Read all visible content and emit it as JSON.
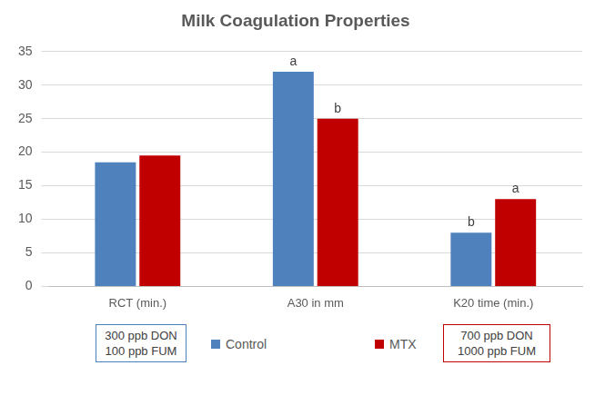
{
  "chart_data": {
    "type": "bar",
    "title": "Milk Coagulation Properties",
    "categories": [
      "RCT (min.)",
      "A30 in mm",
      "K20 time (min.)"
    ],
    "series": [
      {
        "name": "Control",
        "color": "#4f81bd",
        "values": [
          18.5,
          32,
          8
        ],
        "annotations": [
          null,
          "a",
          "b"
        ],
        "box_text": [
          "300 ppb DON",
          "100 ppb FUM"
        ]
      },
      {
        "name": "MTX",
        "color": "#c00000",
        "values": [
          19.5,
          25,
          13
        ],
        "annotations": [
          null,
          "b",
          "a"
        ],
        "box_text": [
          "700 ppb DON",
          "1000 ppb FUM"
        ]
      }
    ],
    "ylim": [
      0,
      35
    ],
    "yticks": [
      0,
      5,
      10,
      15,
      20,
      25,
      30,
      35
    ],
    "grid": true,
    "legend": "bottom"
  }
}
